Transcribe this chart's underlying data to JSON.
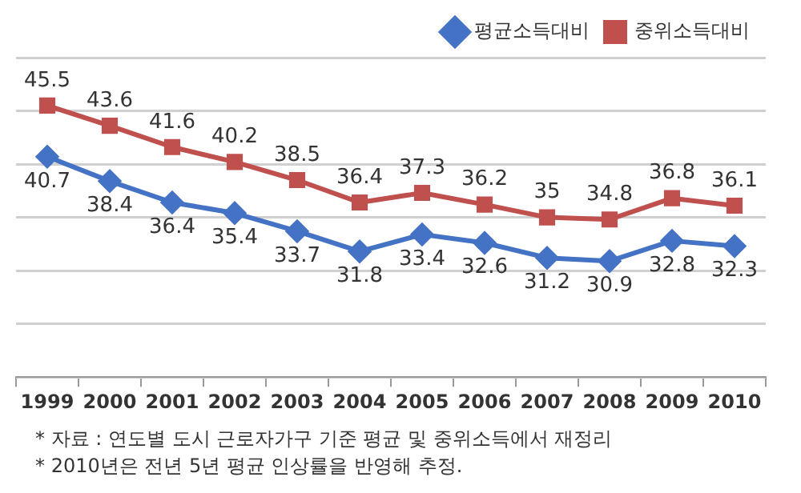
{
  "chart_data": {
    "type": "line",
    "categories": [
      "1999",
      "2000",
      "2001",
      "2002",
      "2003",
      "2004",
      "2005",
      "2006",
      "2007",
      "2008",
      "2009",
      "2010"
    ],
    "series": [
      {
        "name": "평균소득대비",
        "color": "#4472c4",
        "marker": "diamond",
        "values": [
          40.7,
          38.4,
          36.4,
          35.4,
          33.7,
          31.8,
          33.4,
          32.6,
          31.2,
          30.9,
          32.8,
          32.3
        ]
      },
      {
        "name": "중위소득대비",
        "color": "#c0504d",
        "marker": "square",
        "values": [
          45.5,
          43.6,
          41.6,
          40.2,
          38.5,
          36.4,
          37.3,
          36.2,
          35,
          34.8,
          36.8,
          36.1
        ]
      }
    ],
    "ylim": [
      20,
      50
    ],
    "yticks": [
      {
        "value": 20,
        "label": null
      },
      {
        "value": 25,
        "label": null
      },
      {
        "value": 30,
        "label": null
      },
      {
        "value": 35,
        "label": null
      },
      {
        "value": 40,
        "label": null
      },
      {
        "value": 45,
        "label": null
      },
      {
        "value": 50,
        "label": null
      }
    ],
    "tick_labels": "x",
    "grid": "y",
    "legend": "top right",
    "data_labels": true,
    "annotations": [
      "* 자료 : 연도별 도시 근로자가구 기준 평균 및 중위소득에서 재정리",
      "* 2010년은 전년 5년 평균 인상률을 반영해 추정."
    ]
  }
}
